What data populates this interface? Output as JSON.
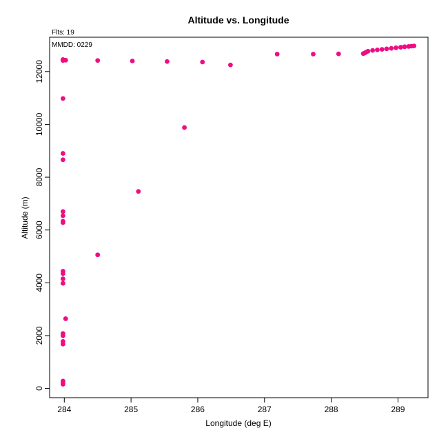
{
  "chart_data": {
    "type": "scatter",
    "title": "Altitude vs. Longitude",
    "xlabel": "Longitude (deg E)",
    "ylabel": "Altitude (m)",
    "xlim": [
      283.78,
      289.45
    ],
    "ylim": [
      -350,
      13300
    ],
    "xticks": [
      284,
      285,
      286,
      287,
      288,
      289
    ],
    "yticks": [
      0,
      2000,
      4000,
      6000,
      8000,
      10000,
      12000
    ],
    "grid": false,
    "marker_color": "#ee0d84",
    "annotations": [
      "Flts: 19",
      "MMDD: 0229"
    ],
    "series": [
      {
        "x": [
          283.98,
          283.98,
          283.98,
          283.98,
          283.98,
          283.98,
          283.98,
          283.98,
          284.02,
          283.98,
          283.98,
          283.98,
          283.98,
          283.98,
          283.98,
          283.98,
          283.98,
          283.98,
          283.98,
          283.98,
          283.98,
          283.98,
          283.98,
          283.98,
          284.02,
          284.5,
          285.11,
          285.8,
          284.5,
          285.02,
          285.54,
          286.07,
          286.49,
          287.19,
          287.73,
          288.11,
          288.48,
          288.5,
          288.52,
          288.55,
          288.62,
          288.69,
          288.76,
          288.83,
          288.9,
          288.97,
          289.04,
          289.1,
          289.16,
          289.2,
          289.24
        ],
        "y": [
          160,
          200,
          280,
          1680,
          1780,
          2000,
          2080,
          3980,
          2640,
          4150,
          4350,
          4440,
          6280,
          6330,
          6540,
          6700,
          8660,
          8900,
          10980,
          12450,
          12440,
          12430,
          12420,
          12450,
          12430,
          5060,
          7460,
          9880,
          12420,
          12400,
          12380,
          12360,
          12250,
          12660,
          12660,
          12670,
          12680,
          12700,
          12730,
          12770,
          12800,
          12820,
          12840,
          12860,
          12880,
          12900,
          12920,
          12940,
          12950,
          12960,
          12970
        ]
      }
    ]
  }
}
